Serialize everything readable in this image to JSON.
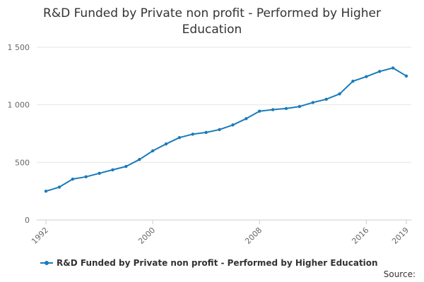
{
  "chart_data": {
    "type": "line",
    "title_line1": "R&D Funded by Private non profit - Performed by Higher",
    "title_line2": "Education",
    "xlabel": "",
    "ylabel": "",
    "xlim": [
      1992,
      2019
    ],
    "ylim": [
      0,
      1500
    ],
    "yticks": [
      0,
      500,
      1000,
      1500
    ],
    "ytick_labels": [
      "0",
      "500",
      "1 000",
      "1 500"
    ],
    "xticks": [
      1992,
      2000,
      2008,
      2016,
      2019
    ],
    "xtick_labels": [
      "1992",
      "2000",
      "2008",
      "2016",
      "2019"
    ],
    "grid": "horizontal",
    "legend_placement": "bottom",
    "color": "#1a7bb9",
    "series": [
      {
        "name": "R&D Funded by Private non profit - Performed by Higher Education",
        "x": [
          1992,
          1993,
          1994,
          1995,
          1996,
          1997,
          1998,
          1999,
          2000,
          2001,
          2002,
          2003,
          2004,
          2005,
          2006,
          2007,
          2008,
          2009,
          2010,
          2011,
          2012,
          2013,
          2014,
          2015,
          2016,
          2017,
          2018,
          2019
        ],
        "values": [
          250,
          285,
          355,
          375,
          405,
          435,
          465,
          525,
          600,
          660,
          715,
          745,
          760,
          785,
          825,
          880,
          945,
          958,
          968,
          985,
          1020,
          1048,
          1095,
          1205,
          1245,
          1290,
          1320,
          1250
        ]
      }
    ]
  },
  "source_label": "Source:"
}
